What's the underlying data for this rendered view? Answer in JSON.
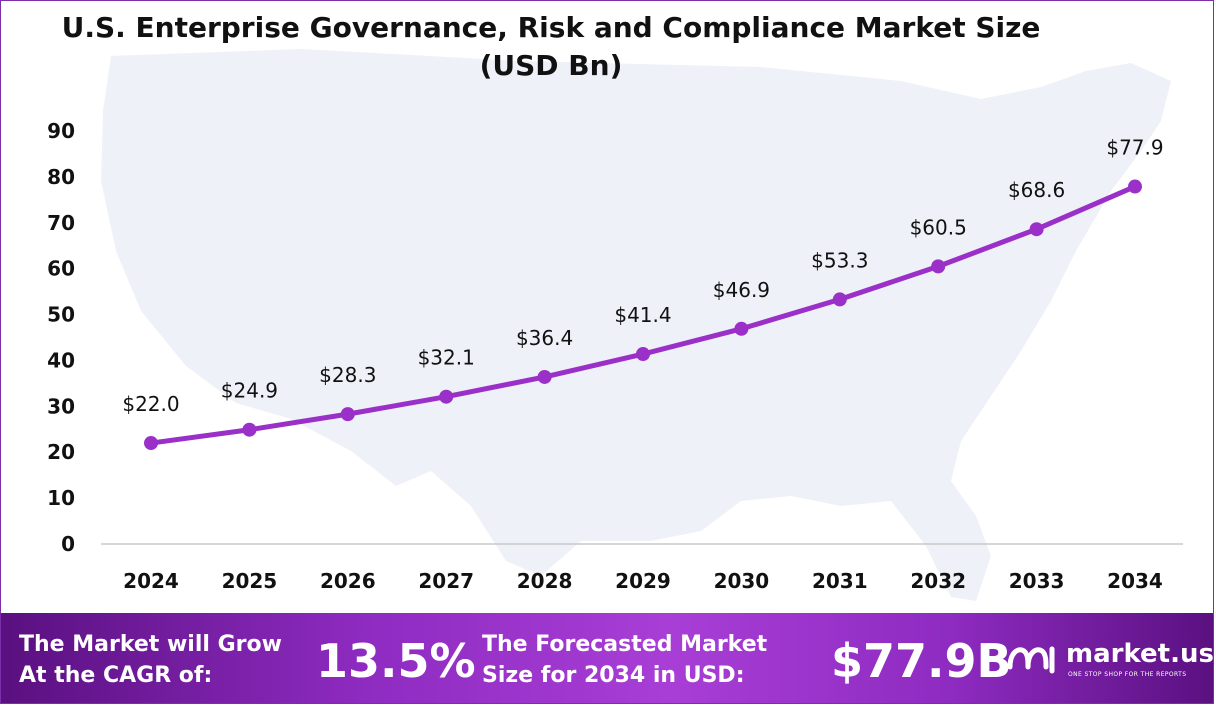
{
  "chart_data": {
    "type": "line",
    "title": "U.S. Enterprise Governance, Risk and Compliance Market Size (USD Bn)",
    "categories": [
      "2024",
      "2025",
      "2026",
      "2027",
      "2028",
      "2029",
      "2030",
      "2031",
      "2032",
      "2033",
      "2034"
    ],
    "series": [
      {
        "name": "Market Size",
        "values": [
          22.0,
          24.9,
          28.3,
          32.1,
          36.4,
          41.4,
          46.9,
          53.3,
          60.5,
          68.6,
          77.9
        ],
        "labels": [
          "$22.0",
          "$24.9",
          "$28.3",
          "$32.1",
          "$36.4",
          "$41.4",
          "$46.9",
          "$53.3",
          "$60.5",
          "$68.6",
          "$77.9"
        ]
      }
    ],
    "y_ticks": [
      "0",
      "10",
      "20",
      "30",
      "40",
      "50",
      "60",
      "70",
      "80",
      "90"
    ],
    "ylim": [
      0,
      90
    ],
    "xlabel": "",
    "ylabel": "",
    "grid": false,
    "line_color": "#9b30c8",
    "marker_color": "#9b30c8"
  },
  "footer": {
    "cagr_label_line1": "The Market will Grow",
    "cagr_label_line2": "At the CAGR of:",
    "cagr_value": "13.5%",
    "forecast_label_line1": "The Forecasted Market",
    "forecast_label_line2": "Size for 2034 in USD:",
    "forecast_value": "$77.9B"
  },
  "brand": {
    "name": "market.us",
    "tagline": "ONE STOP SHOP FOR THE REPORTS",
    "icon": "market-us-logo-icon"
  },
  "colors": {
    "accent": "#9b30c8",
    "footer_dark": "#5a1080",
    "footer_light": "#a83ed6",
    "map": "#eef1f8"
  }
}
